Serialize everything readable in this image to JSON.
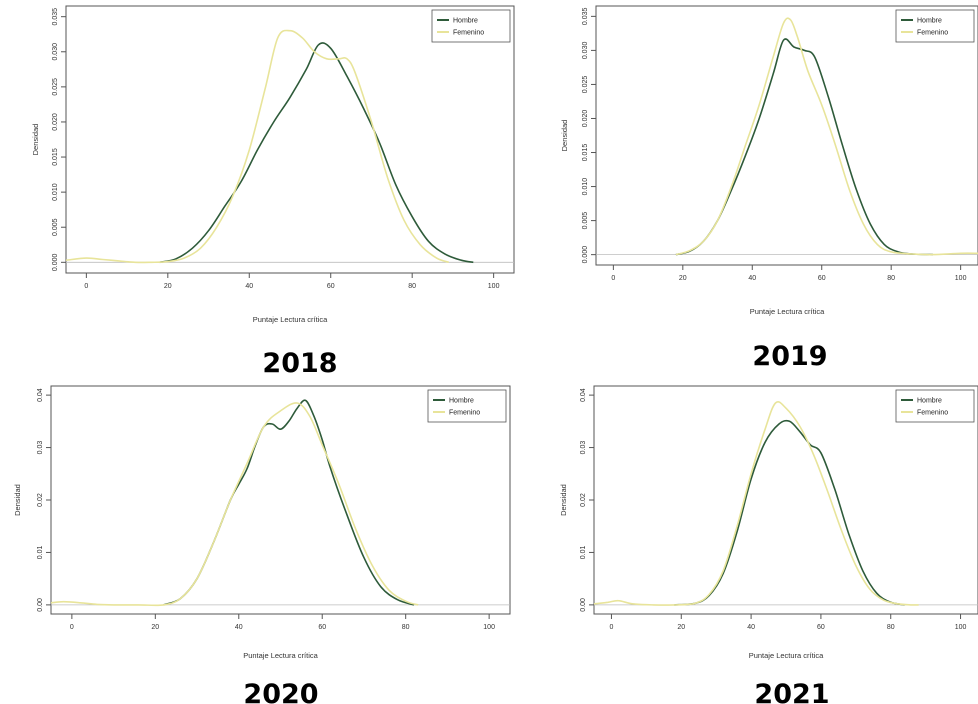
{
  "chart_data": [
    {
      "type": "line",
      "caption": "2018",
      "xlabel": "Puntaje Lectura crítica",
      "ylabel": "Densidad",
      "xlim": [
        -5,
        105
      ],
      "ylim": [
        0,
        0.035
      ],
      "xticks": [
        0,
        20,
        40,
        60,
        80,
        100
      ],
      "yticks": [
        0,
        0.005,
        0.01,
        0.015,
        0.02,
        0.025,
        0.03,
        0.035
      ],
      "ytick_labels": [
        "0.000",
        "0.005",
        "0.010",
        "0.015",
        "0.020",
        "0.025",
        "0.030",
        "0.035"
      ],
      "grid": false,
      "legend_position": "top-right",
      "series": [
        {
          "name": "Hombre",
          "color": "#2e5b3a",
          "x": [
            18,
            22,
            26,
            30,
            34,
            38,
            42,
            46,
            50,
            54,
            57,
            60,
            64,
            68,
            72,
            76,
            80,
            84,
            88,
            92,
            95
          ],
          "y": [
            0.0,
            0.0005,
            0.002,
            0.0045,
            0.008,
            0.0115,
            0.016,
            0.02,
            0.0235,
            0.0275,
            0.031,
            0.0305,
            0.0265,
            0.022,
            0.017,
            0.011,
            0.0065,
            0.003,
            0.0012,
            0.0003,
            0.0
          ]
        },
        {
          "name": "Femenino",
          "color": "#e8e49a",
          "x": [
            -5,
            0,
            4,
            8,
            12,
            16,
            20,
            24,
            28,
            32,
            36,
            40,
            44,
            47,
            50,
            53,
            56,
            59,
            62,
            64,
            66,
            70,
            74,
            78,
            82,
            86,
            89
          ],
          "y": [
            0.0003,
            0.0006,
            0.0004,
            0.0002,
            0.0,
            0.0,
            0.0001,
            0.0006,
            0.002,
            0.005,
            0.0095,
            0.016,
            0.025,
            0.032,
            0.033,
            0.032,
            0.03,
            0.029,
            0.029,
            0.029,
            0.027,
            0.02,
            0.012,
            0.006,
            0.0025,
            0.0006,
            0.0
          ]
        }
      ]
    },
    {
      "type": "line",
      "caption": "2019",
      "xlabel": "Puntaje Lectura crítica",
      "ylabel": "Densidad",
      "xlim": [
        -5,
        105
      ],
      "ylim": [
        0,
        0.035
      ],
      "xticks": [
        0,
        20,
        40,
        60,
        80,
        100
      ],
      "yticks": [
        0,
        0.005,
        0.01,
        0.015,
        0.02,
        0.025,
        0.03,
        0.035
      ],
      "ytick_labels": [
        "0.000",
        "0.005",
        "0.010",
        "0.015",
        "0.020",
        "0.025",
        "0.030",
        "0.035"
      ],
      "grid": false,
      "legend_position": "top-right",
      "series": [
        {
          "name": "Hombre",
          "color": "#2e5b3a",
          "x": [
            18,
            22,
            26,
            30,
            34,
            38,
            42,
            46,
            49,
            52,
            55,
            58,
            62,
            66,
            70,
            74,
            78,
            82,
            86,
            92
          ],
          "y": [
            0.0,
            0.0005,
            0.002,
            0.005,
            0.0095,
            0.0145,
            0.02,
            0.0265,
            0.0315,
            0.0305,
            0.03,
            0.029,
            0.023,
            0.016,
            0.0095,
            0.0045,
            0.0015,
            0.0004,
            0.0001,
            0.0
          ]
        },
        {
          "name": "Femenino",
          "color": "#e8e49a",
          "x": [
            18,
            22,
            26,
            30,
            34,
            38,
            42,
            46,
            49,
            51,
            53,
            56,
            60,
            64,
            68,
            72,
            76,
            80,
            86,
            92,
            100,
            105
          ],
          "y": [
            0.0,
            0.0006,
            0.002,
            0.005,
            0.01,
            0.016,
            0.022,
            0.029,
            0.034,
            0.0345,
            0.032,
            0.027,
            0.022,
            0.016,
            0.0095,
            0.0045,
            0.0015,
            0.0004,
            0.0001,
            0.0,
            0.0002,
            0.0002
          ]
        }
      ]
    },
    {
      "type": "line",
      "caption": "2020",
      "xlabel": "Puntaje Lectura crítica",
      "ylabel": "Densidad",
      "xlim": [
        -5,
        105
      ],
      "ylim": [
        0,
        0.04
      ],
      "xticks": [
        0,
        20,
        40,
        60,
        80,
        100
      ],
      "yticks": [
        0,
        0.01,
        0.02,
        0.03,
        0.04
      ],
      "ytick_labels": [
        "0.00",
        "0.01",
        "0.02",
        "0.03",
        "0.04"
      ],
      "grid": false,
      "legend_position": "top-right",
      "series": [
        {
          "name": "Hombre",
          "color": "#2e5b3a",
          "x": [
            22,
            26,
            30,
            34,
            38,
            40,
            42,
            44,
            46,
            48,
            50,
            52,
            54,
            56,
            58,
            60,
            62,
            66,
            70,
            74,
            78,
            82
          ],
          "y": [
            0.0,
            0.0012,
            0.005,
            0.012,
            0.02,
            0.023,
            0.026,
            0.0305,
            0.034,
            0.0345,
            0.0335,
            0.035,
            0.0375,
            0.039,
            0.036,
            0.0315,
            0.026,
            0.017,
            0.009,
            0.0035,
            0.001,
            0.0
          ]
        },
        {
          "name": "Femenino",
          "color": "#e8e49a",
          "x": [
            -5,
            -2,
            2,
            6,
            10,
            16,
            22,
            26,
            30,
            34,
            38,
            42,
            46,
            50,
            54,
            57,
            60,
            64,
            68,
            72,
            76,
            80,
            83
          ],
          "y": [
            0.0004,
            0.0006,
            0.0004,
            0.0001,
            0.0,
            0.0,
            0.0,
            0.0012,
            0.005,
            0.012,
            0.02,
            0.027,
            0.034,
            0.037,
            0.0385,
            0.036,
            0.0305,
            0.023,
            0.0145,
            0.0075,
            0.0028,
            0.0007,
            0.0
          ]
        }
      ]
    },
    {
      "type": "line",
      "caption": "2021",
      "xlabel": "Puntaje Lectura crítica",
      "ylabel": "Densidad",
      "xlim": [
        -5,
        105
      ],
      "ylim": [
        0,
        0.04
      ],
      "xticks": [
        0,
        20,
        40,
        60,
        80,
        100
      ],
      "yticks": [
        0,
        0.01,
        0.02,
        0.03,
        0.04
      ],
      "ytick_labels": [
        "0.00",
        "0.01",
        "0.02",
        "0.03",
        "0.04"
      ],
      "grid": false,
      "legend_position": "top-right",
      "series": [
        {
          "name": "Hombre",
          "color": "#2e5b3a",
          "x": [
            18,
            24,
            28,
            32,
            36,
            40,
            44,
            48,
            51,
            54,
            57,
            60,
            64,
            68,
            72,
            76,
            80,
            84
          ],
          "y": [
            0.0,
            0.0003,
            0.0018,
            0.006,
            0.014,
            0.024,
            0.031,
            0.0345,
            0.035,
            0.033,
            0.0305,
            0.029,
            0.022,
            0.0135,
            0.0065,
            0.0022,
            0.0005,
            0.0
          ]
        },
        {
          "name": "Femenino",
          "color": "#e8e49a",
          "x": [
            -5,
            -1,
            2,
            6,
            12,
            18,
            24,
            28,
            32,
            36,
            40,
            44,
            47,
            50,
            54,
            58,
            62,
            66,
            70,
            74,
            78,
            82,
            86,
            88
          ],
          "y": [
            0.0002,
            0.0005,
            0.0008,
            0.0002,
            0.0,
            0.0,
            0.0003,
            0.002,
            0.0065,
            0.015,
            0.025,
            0.0335,
            0.0385,
            0.0375,
            0.034,
            0.0285,
            0.0215,
            0.014,
            0.0075,
            0.003,
            0.0009,
            0.0002,
            0.0,
            0.0
          ]
        }
      ]
    }
  ]
}
